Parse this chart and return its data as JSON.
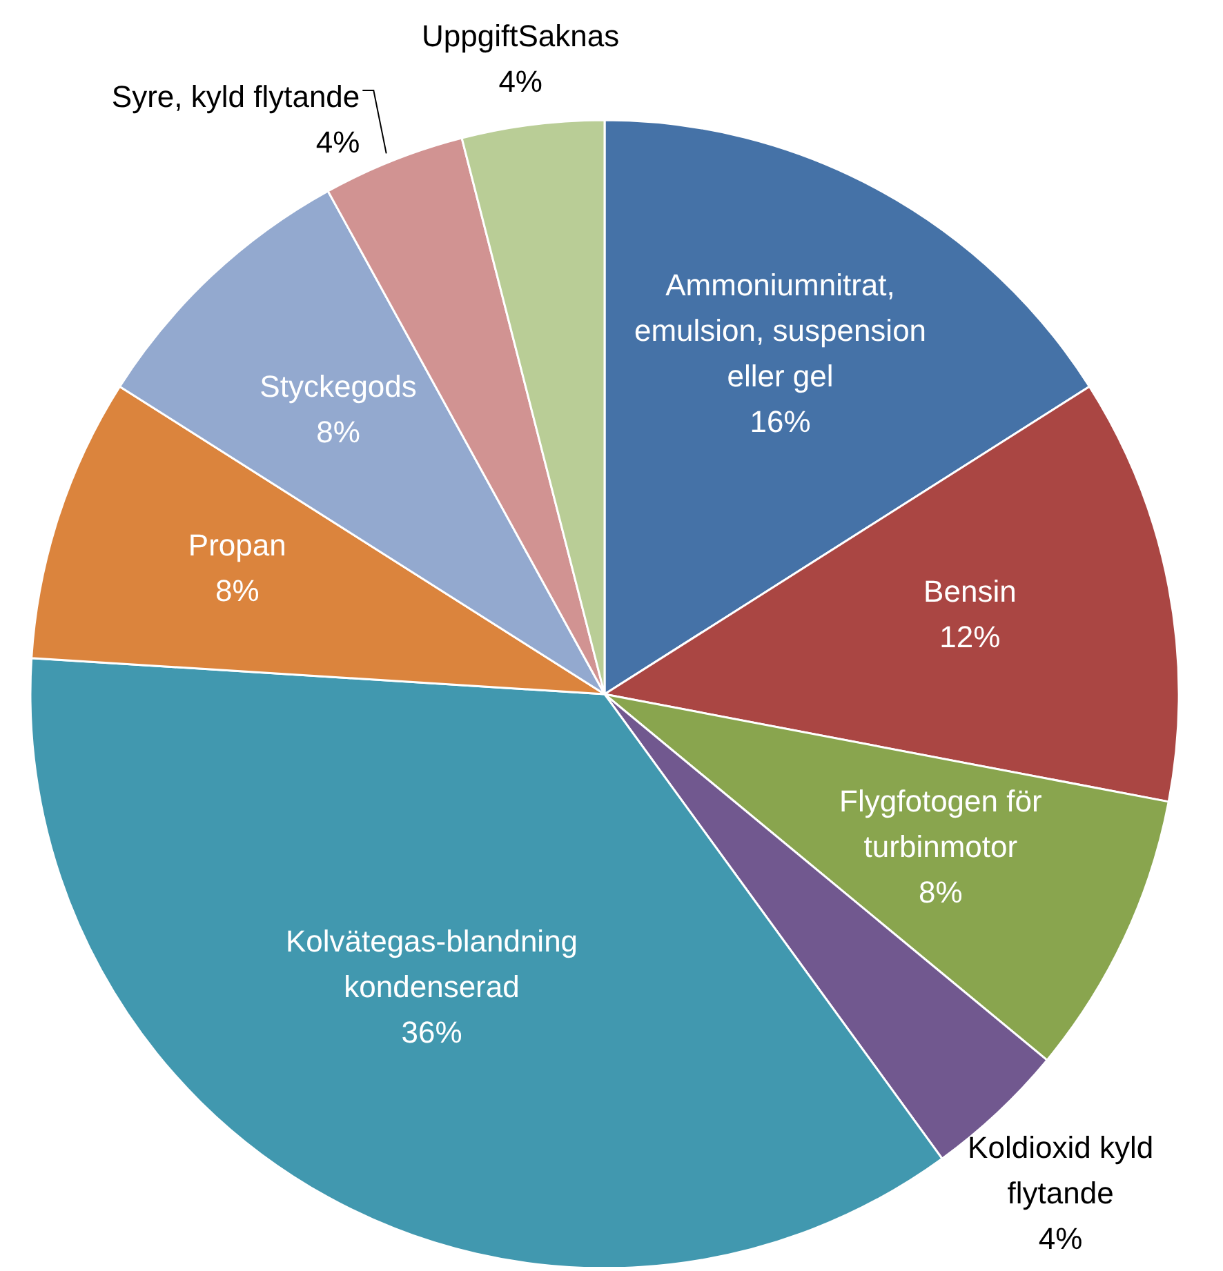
{
  "chart_data": {
    "type": "pie",
    "categories": [
      "Ammoniumnitrat, emulsion, suspension eller gel",
      "Bensin",
      "Flygfotogen för turbinmotor",
      "Koldioxid kyld flytande",
      "Kolvätegas-blandning kondenserad",
      "Propan",
      "Styckegods",
      "Syre, kyld flytande",
      "UppgiftSaknas"
    ],
    "values": [
      16,
      12,
      8,
      4,
      36,
      8,
      8,
      4,
      4
    ],
    "value_labels": [
      "16%",
      "12%",
      "8%",
      "4%",
      "36%",
      "8%",
      "8%",
      "4%",
      "4%"
    ],
    "colors": [
      "#4572a7",
      "#aa4643",
      "#89a54e",
      "#71588f",
      "#4198af",
      "#db843d",
      "#93a9cf",
      "#d19392",
      "#b9cd96"
    ]
  }
}
